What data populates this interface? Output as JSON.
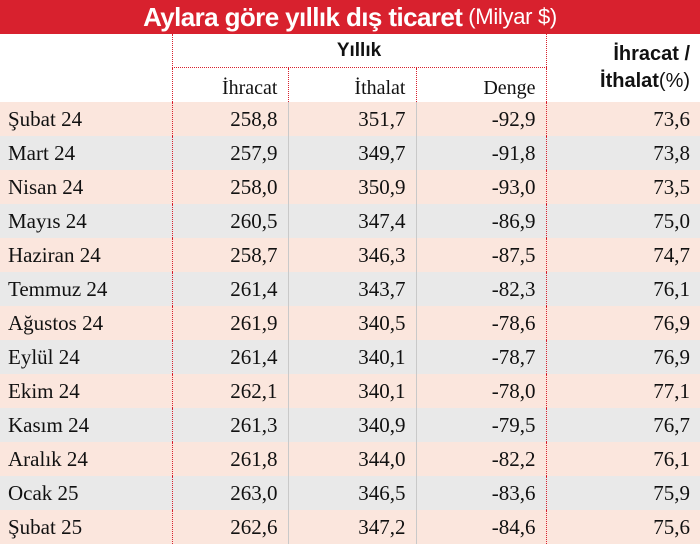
{
  "title": {
    "main": "Aylara göre yıllık dış ticaret",
    "unit": "(Milyar $)"
  },
  "header": {
    "group_label": "Yıllık",
    "columns": [
      "İhracat",
      "İthalat",
      "Denge"
    ],
    "ratio_line1": "İhracat /",
    "ratio_line2": "İthalat",
    "ratio_unit": "(%)"
  },
  "rows": [
    {
      "month": "Şubat 24",
      "export": "258,8",
      "import": "351,7",
      "balance": "-92,9",
      "ratio": "73,6"
    },
    {
      "month": "Mart 24",
      "export": "257,9",
      "import": "349,7",
      "balance": "-91,8",
      "ratio": "73,8"
    },
    {
      "month": "Nisan 24",
      "export": "258,0",
      "import": "350,9",
      "balance": "-93,0",
      "ratio": "73,5"
    },
    {
      "month": "Mayıs 24",
      "export": "260,5",
      "import": "347,4",
      "balance": "-86,9",
      "ratio": "75,0"
    },
    {
      "month": "Haziran 24",
      "export": "258,7",
      "import": "346,3",
      "balance": "-87,5",
      "ratio": "74,7"
    },
    {
      "month": "Temmuz 24",
      "export": "261,4",
      "import": "343,7",
      "balance": "-82,3",
      "ratio": "76,1"
    },
    {
      "month": "Ağustos 24",
      "export": "261,9",
      "import": "340,5",
      "balance": "-78,6",
      "ratio": "76,9"
    },
    {
      "month": "Eylül 24",
      "export": "261,4",
      "import": "340,1",
      "balance": "-78,7",
      "ratio": "76,9"
    },
    {
      "month": "Ekim 24",
      "export": "262,1",
      "import": "340,1",
      "balance": "-78,0",
      "ratio": "77,1"
    },
    {
      "month": "Kasım 24",
      "export": "261,3",
      "import": "340,9",
      "balance": "-79,5",
      "ratio": "76,7"
    },
    {
      "month": "Aralık 24",
      "export": "261,8",
      "import": "344,0",
      "balance": "-82,2",
      "ratio": "76,1"
    },
    {
      "month": "Ocak 25",
      "export": "263,0",
      "import": "346,5",
      "balance": "-83,6",
      "ratio": "75,9"
    },
    {
      "month": "Şubat 25",
      "export": "262,6",
      "import": "347,2",
      "balance": "-84,6",
      "ratio": "75,6"
    }
  ],
  "colors": {
    "title_background": "#d8212e",
    "row_odd": "#fbe6dd",
    "row_even": "#e9e9e9",
    "divider": "#d8212e"
  }
}
